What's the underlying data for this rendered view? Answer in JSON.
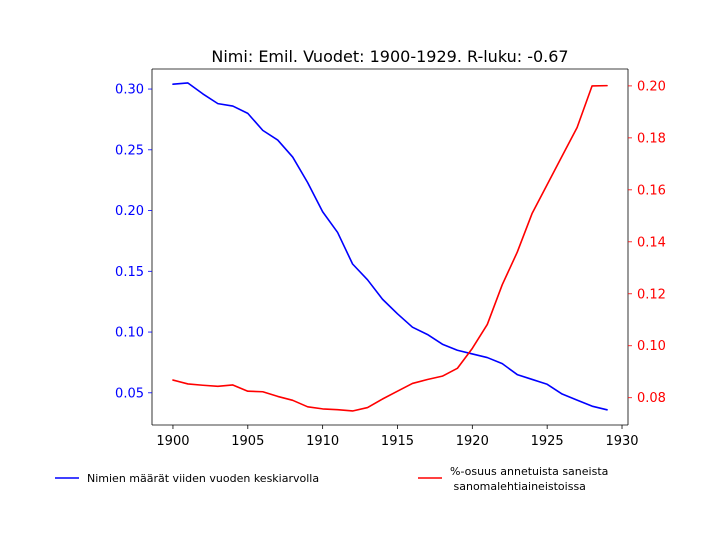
{
  "chart_data": {
    "type": "line",
    "title": "Nimi: Emil. Vuodet: 1900-1929. R-luku: -0.67",
    "xlabel": "",
    "x": [
      1900,
      1901,
      1902,
      1903,
      1904,
      1905,
      1906,
      1907,
      1908,
      1909,
      1910,
      1911,
      1912,
      1913,
      1914,
      1915,
      1916,
      1917,
      1918,
      1919,
      1920,
      1921,
      1922,
      1923,
      1924,
      1925,
      1926,
      1927,
      1928,
      1929
    ],
    "xlim": [
      1898.6,
      1930.4
    ],
    "xticks": [
      1900,
      1905,
      1910,
      1915,
      1920,
      1925,
      1930
    ],
    "left_axis": {
      "ylabel": "",
      "ylim": [
        0.0235,
        0.3165
      ],
      "ticks": [
        "0.05",
        "0.10",
        "0.15",
        "0.20",
        "0.25",
        "0.30"
      ],
      "color": "#0000ff"
    },
    "right_axis": {
      "ylabel": "",
      "ylim": [
        0.0695,
        0.2065
      ],
      "ticks": [
        "0.08",
        "0.10",
        "0.12",
        "0.14",
        "0.16",
        "0.18",
        "0.20"
      ],
      "color": "#ff0000"
    },
    "series": [
      {
        "name": "Nimien määrät viiden vuoden keskiarvolla",
        "axis": "left",
        "color": "#0000ff",
        "values": [
          0.304,
          0.305,
          0.296,
          0.288,
          0.286,
          0.28,
          0.266,
          0.258,
          0.244,
          0.223,
          0.199,
          0.182,
          0.156,
          0.143,
          0.127,
          0.115,
          0.104,
          0.098,
          0.09,
          0.085,
          0.082,
          0.079,
          0.074,
          0.065,
          0.061,
          0.057,
          0.049,
          0.044,
          0.039,
          0.036
        ]
      },
      {
        "name": "%-osuus annetuista saneista\n sanomalehtiaineistoissa",
        "axis": "right",
        "color": "#ff0000",
        "values": [
          0.0868,
          0.0853,
          0.0848,
          0.0844,
          0.0849,
          0.0825,
          0.0823,
          0.0805,
          0.079,
          0.0765,
          0.0757,
          0.0754,
          0.0749,
          0.0762,
          0.0795,
          0.0825,
          0.0855,
          0.087,
          0.0883,
          0.0913,
          0.099,
          0.1082,
          0.1235,
          0.136,
          0.151,
          0.162,
          0.173,
          0.184,
          0.2,
          0.2001
        ]
      }
    ],
    "legend_placement": "below",
    "grid": false
  }
}
